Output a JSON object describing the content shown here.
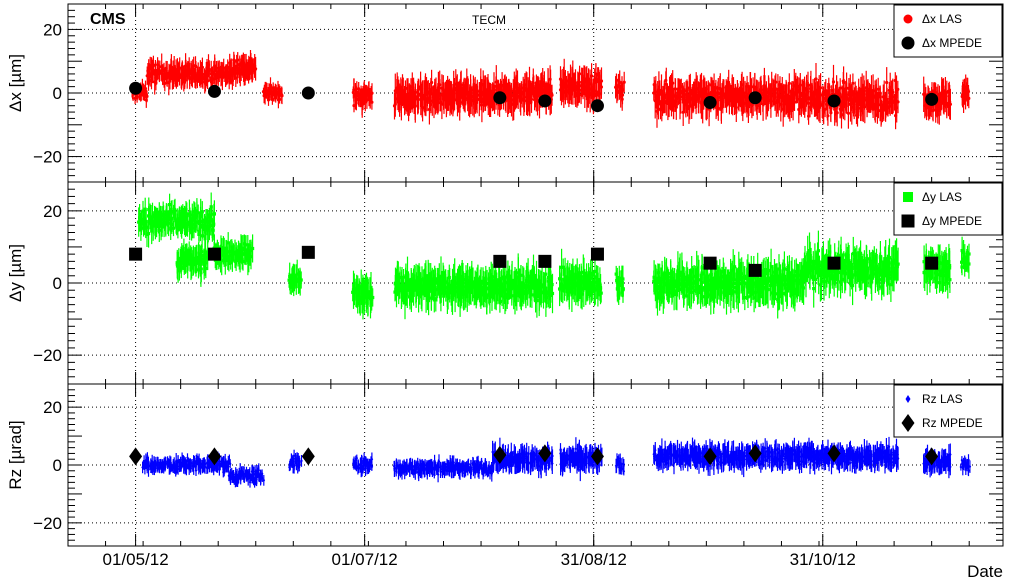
{
  "chart_data": {
    "type": "scatter",
    "cms_label": "CMS",
    "subtitle": "TECM",
    "xlabel": "Date",
    "x_tick_labels": [
      "01/05/12",
      "01/07/12",
      "31/08/12",
      "31/10/12"
    ],
    "x_tick_dates": [
      "2012-05-01",
      "2012-07-01",
      "2012-08-31",
      "2012-10-31"
    ],
    "xlim": [
      "2012-04-13",
      "2012-12-18"
    ],
    "grid": true,
    "panels": [
      {
        "id": "dx",
        "ylabel": "Δx [µm]",
        "ylim": [
          -28,
          28
        ],
        "y_ticks": [
          -20,
          0,
          20
        ],
        "y_tick_labels": [
          "−20",
          "0",
          "20"
        ],
        "legend_position": "top-right",
        "las": {
          "name": "Δx LAS",
          "color": "#ff0000",
          "marker": "circle",
          "segments": [
            {
              "start": "2012-04-30",
              "end": "2012-05-04",
              "center": 0,
              "halfwidth": 2,
              "spread": 3
            },
            {
              "start": "2012-05-04",
              "end": "2012-05-27",
              "center": 6,
              "halfwidth": 3,
              "spread": 4
            },
            {
              "start": "2012-05-27",
              "end": "2012-06-02",
              "center": 8,
              "halfwidth": 3,
              "spread": 4
            },
            {
              "start": "2012-06-04",
              "end": "2012-06-09",
              "center": 0,
              "halfwidth": 2,
              "spread": 3
            },
            {
              "start": "2012-06-28",
              "end": "2012-07-03",
              "center": -1,
              "halfwidth": 3,
              "spread": 4
            },
            {
              "start": "2012-07-09",
              "end": "2012-08-04",
              "center": -1,
              "halfwidth": 4,
              "spread": 5
            },
            {
              "start": "2012-08-04",
              "end": "2012-08-20",
              "center": 0,
              "halfwidth": 4,
              "spread": 5
            },
            {
              "start": "2012-08-22",
              "end": "2012-09-02",
              "center": 2,
              "halfwidth": 4,
              "spread": 5
            },
            {
              "start": "2012-09-06",
              "end": "2012-09-08",
              "center": 1,
              "halfwidth": 3,
              "spread": 4
            },
            {
              "start": "2012-09-16",
              "end": "2012-10-26",
              "center": -1,
              "halfwidth": 4,
              "spread": 6
            },
            {
              "start": "2012-10-26",
              "end": "2012-11-20",
              "center": -2,
              "halfwidth": 4,
              "spread": 7
            },
            {
              "start": "2012-11-27",
              "end": "2012-12-04",
              "center": -2,
              "halfwidth": 4,
              "spread": 5
            },
            {
              "start": "2012-12-07",
              "end": "2012-12-09",
              "center": 0,
              "halfwidth": 3,
              "spread": 4
            }
          ]
        },
        "mpede": {
          "name": "Δx MPEDE",
          "color": "#000000",
          "marker": "circle",
          "points": [
            {
              "x": "2012-05-01",
              "y": 1.5
            },
            {
              "x": "2012-05-22",
              "y": 0.5
            },
            {
              "x": "2012-06-16",
              "y": 0.0
            },
            {
              "x": "2012-08-06",
              "y": -1.5
            },
            {
              "x": "2012-08-18",
              "y": -2.5
            },
            {
              "x": "2012-09-01",
              "y": -4.0
            },
            {
              "x": "2012-10-01",
              "y": -3.0
            },
            {
              "x": "2012-10-13",
              "y": -1.5
            },
            {
              "x": "2012-11-03",
              "y": -2.5
            },
            {
              "x": "2012-11-29",
              "y": -2.0
            }
          ]
        }
      },
      {
        "id": "dy",
        "ylabel": "Δy [µm]",
        "ylim": [
          -28,
          28
        ],
        "y_ticks": [
          -20,
          0,
          20
        ],
        "y_tick_labels": [
          "−20",
          "0",
          "20"
        ],
        "legend_position": "top-right",
        "las": {
          "name": "Δy LAS",
          "color": "#00ff00",
          "marker": "square",
          "segments": [
            {
              "start": "2012-05-02",
              "end": "2012-05-22",
              "center": 17,
              "halfwidth": 3,
              "spread": 5
            },
            {
              "start": "2012-05-12",
              "end": "2012-05-20",
              "center": 6,
              "halfwidth": 3,
              "spread": 4
            },
            {
              "start": "2012-05-22",
              "end": "2012-06-01",
              "center": 8,
              "halfwidth": 3,
              "spread": 4
            },
            {
              "start": "2012-06-11",
              "end": "2012-06-14",
              "center": 1,
              "halfwidth": 3,
              "spread": 3
            },
            {
              "start": "2012-06-28",
              "end": "2012-07-03",
              "center": -3,
              "halfwidth": 4,
              "spread": 4
            },
            {
              "start": "2012-07-09",
              "end": "2012-08-04",
              "center": -1,
              "halfwidth": 4,
              "spread": 5
            },
            {
              "start": "2012-08-04",
              "end": "2012-08-20",
              "center": -1,
              "halfwidth": 4,
              "spread": 5
            },
            {
              "start": "2012-08-22",
              "end": "2012-09-02",
              "center": 0,
              "halfwidth": 4,
              "spread": 5
            },
            {
              "start": "2012-09-06",
              "end": "2012-09-08",
              "center": 0,
              "halfwidth": 3,
              "spread": 4
            },
            {
              "start": "2012-09-16",
              "end": "2012-10-26",
              "center": 0,
              "halfwidth": 4,
              "spread": 6
            },
            {
              "start": "2012-10-26",
              "end": "2012-11-20",
              "center": 4,
              "halfwidth": 4,
              "spread": 6
            },
            {
              "start": "2012-11-27",
              "end": "2012-12-04",
              "center": 4,
              "halfwidth": 4,
              "spread": 5
            },
            {
              "start": "2012-12-07",
              "end": "2012-12-09",
              "center": 7,
              "halfwidth": 3,
              "spread": 4
            }
          ]
        },
        "mpede": {
          "name": "Δy MPEDE",
          "color": "#000000",
          "marker": "square",
          "points": [
            {
              "x": "2012-05-01",
              "y": 8.0
            },
            {
              "x": "2012-05-22",
              "y": 8.0
            },
            {
              "x": "2012-06-16",
              "y": 8.5
            },
            {
              "x": "2012-08-06",
              "y": 6.0
            },
            {
              "x": "2012-08-18",
              "y": 6.0
            },
            {
              "x": "2012-09-01",
              "y": 8.0
            },
            {
              "x": "2012-10-01",
              "y": 5.5
            },
            {
              "x": "2012-10-13",
              "y": 3.5
            },
            {
              "x": "2012-11-03",
              "y": 5.5
            },
            {
              "x": "2012-11-29",
              "y": 5.5
            }
          ]
        }
      },
      {
        "id": "rz",
        "ylabel": "Rz [µrad]",
        "ylim": [
          -28,
          28
        ],
        "y_ticks": [
          -20,
          0,
          20
        ],
        "y_tick_labels": [
          "−20",
          "0",
          "20"
        ],
        "legend_position": "top-right",
        "las": {
          "name": "Rz LAS",
          "color": "#0000ff",
          "marker": "diamond",
          "segments": [
            {
              "start": "2012-05-03",
              "end": "2012-05-26",
              "center": 0,
              "halfwidth": 2,
              "spread": 3
            },
            {
              "start": "2012-05-26",
              "end": "2012-06-04",
              "center": -4,
              "halfwidth": 2,
              "spread": 3
            },
            {
              "start": "2012-06-11",
              "end": "2012-06-14",
              "center": 1,
              "halfwidth": 2,
              "spread": 3
            },
            {
              "start": "2012-06-28",
              "end": "2012-07-03",
              "center": 0,
              "halfwidth": 2,
              "spread": 3
            },
            {
              "start": "2012-07-09",
              "end": "2012-08-04",
              "center": -1,
              "halfwidth": 2,
              "spread": 3
            },
            {
              "start": "2012-08-04",
              "end": "2012-08-20",
              "center": 2,
              "halfwidth": 3,
              "spread": 4
            },
            {
              "start": "2012-08-22",
              "end": "2012-09-02",
              "center": 2,
              "halfwidth": 3,
              "spread": 4
            },
            {
              "start": "2012-09-06",
              "end": "2012-09-08",
              "center": 0,
              "halfwidth": 2,
              "spread": 3
            },
            {
              "start": "2012-09-16",
              "end": "2012-10-26",
              "center": 3,
              "halfwidth": 3,
              "spread": 4
            },
            {
              "start": "2012-10-26",
              "end": "2012-11-20",
              "center": 3,
              "halfwidth": 3,
              "spread": 4
            },
            {
              "start": "2012-11-27",
              "end": "2012-12-04",
              "center": 1,
              "halfwidth": 3,
              "spread": 3
            },
            {
              "start": "2012-12-07",
              "end": "2012-12-09",
              "center": 0,
              "halfwidth": 2,
              "spread": 3
            }
          ]
        },
        "mpede": {
          "name": "Rz MPEDE",
          "color": "#000000",
          "marker": "diamond",
          "points": [
            {
              "x": "2012-05-01",
              "y": 3.0
            },
            {
              "x": "2012-05-22",
              "y": 3.0
            },
            {
              "x": "2012-06-16",
              "y": 3.0
            },
            {
              "x": "2012-08-06",
              "y": 3.5
            },
            {
              "x": "2012-08-18",
              "y": 4.0
            },
            {
              "x": "2012-09-01",
              "y": 3.0
            },
            {
              "x": "2012-10-01",
              "y": 3.0
            },
            {
              "x": "2012-10-13",
              "y": 4.0
            },
            {
              "x": "2012-11-03",
              "y": 4.0
            },
            {
              "x": "2012-11-29",
              "y": 3.0
            }
          ]
        }
      }
    ]
  }
}
